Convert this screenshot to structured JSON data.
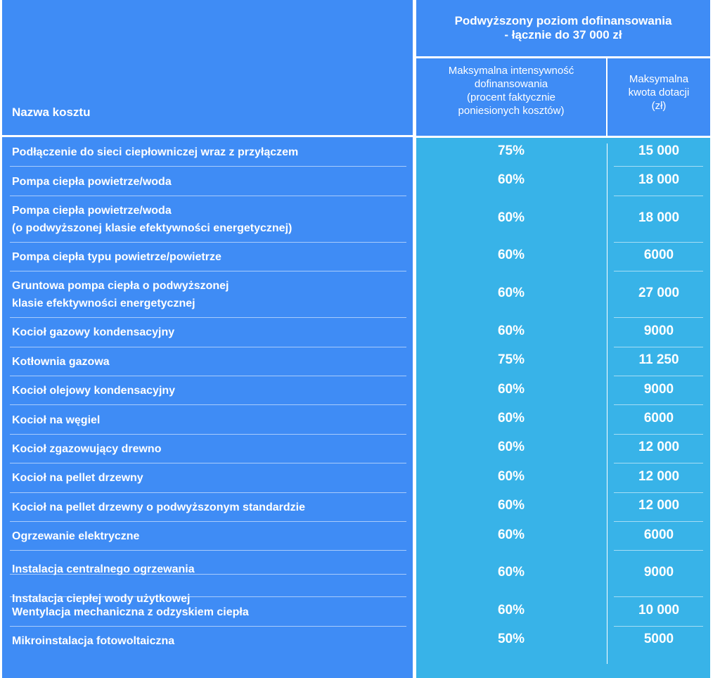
{
  "header": {
    "cost_name_label": "Nazwa kosztu",
    "group_title_line1": "Podwyższony poziom dofinansowania",
    "group_title_line2": "- łącznie do 37 000 zł",
    "col_intensity_lines": [
      "Maksymalna intensywność",
      "dofinansowania",
      "(procent faktycznie",
      "poniesionych kosztów)"
    ],
    "col_amount_lines": [
      "Maksymalna",
      "kwota dotacji",
      "(zł)"
    ]
  },
  "rows": [
    {
      "name": [
        "Podłączenie do sieci ciepłowniczej wraz z przyłączem"
      ],
      "percent": "75%",
      "amount": "15 000"
    },
    {
      "name": [
        "Pompa ciepła powietrze/woda"
      ],
      "percent": "60%",
      "amount": "18 000"
    },
    {
      "name": [
        "Pompa ciepła powietrze/woda",
        "(o podwyższonej klasie efektywności energetycznej)"
      ],
      "percent": "60%",
      "amount": "18 000"
    },
    {
      "name": [
        "Pompa ciepła typu powietrze/powietrze"
      ],
      "percent": "60%",
      "amount": "6000"
    },
    {
      "name": [
        "Gruntowa pompa ciepła o podwyższonej",
        "klasie efektywności energetycznej"
      ],
      "percent": "60%",
      "amount": "27 000"
    },
    {
      "name": [
        "Kocioł gazowy kondensacyjny"
      ],
      "percent": "60%",
      "amount": "9000"
    },
    {
      "name": [
        "Kotłownia gazowa"
      ],
      "percent": "75%",
      "amount": "11 250"
    },
    {
      "name": [
        "Kocioł olejowy kondensacyjny"
      ],
      "percent": "60%",
      "amount": "9000"
    },
    {
      "name": [
        "Kocioł na węgiel"
      ],
      "percent": "60%",
      "amount": "6000"
    },
    {
      "name": [
        "Kocioł zgazowujący drewno"
      ],
      "percent": "60%",
      "amount": "12 000"
    },
    {
      "name": [
        "Kocioł na pellet drzewny"
      ],
      "percent": "60%",
      "amount": "12 000"
    },
    {
      "name": [
        "Kocioł na pellet drzewny o podwyższonym standardzie"
      ],
      "percent": "60%",
      "amount": "12 000"
    },
    {
      "name": [
        "Ogrzewanie elektryczne"
      ],
      "percent": "60%",
      "amount": "6000"
    },
    {
      "name": [
        "Instalacja centralnego ogrzewania",
        "Instalacja ciepłej wody użytkowej"
      ],
      "percent": "60%",
      "amount": "9000"
    },
    {
      "name": [
        "Wentylacja mechaniczna z odzyskiem ciepła"
      ],
      "percent": "60%",
      "amount": "10 000"
    },
    {
      "name": [
        "Mikroinstalacja fotowoltaiczna"
      ],
      "percent": "50%",
      "amount": "5000"
    }
  ],
  "colors": {
    "header_and_left_blue": "#3f8cf5",
    "right_body_cyan": "#38b3e8",
    "text": "#ffffff"
  }
}
